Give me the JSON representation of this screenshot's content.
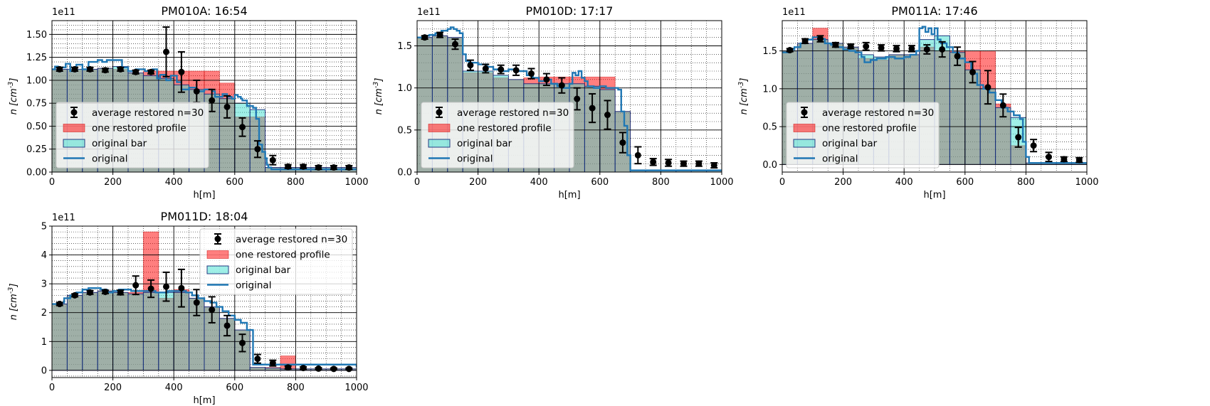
{
  "chart_data": [
    {
      "type": "bar",
      "title": "PM010A: 16:54",
      "xlabel": "h[m]",
      "ylabel": "n [cm^-3]",
      "y_offset_text": "1e11",
      "xlim": [
        0,
        1000
      ],
      "ylim": [
        0,
        1.65
      ],
      "xticks": [
        0,
        200,
        400,
        600,
        800,
        1000
      ],
      "yticks": [
        0.0,
        0.25,
        0.5,
        0.75,
        1.0,
        1.25,
        1.5
      ],
      "ytick_labels": [
        "0.00",
        "0.25",
        "0.50",
        "0.75",
        "1.00",
        "1.25",
        "1.50"
      ],
      "grid": true,
      "legend_position": "lower-left",
      "legend": [
        "average restored n=30",
        "one restored profile",
        "original bar",
        "original"
      ],
      "bin_width": 50,
      "original_bar": [
        1.12,
        1.12,
        1.12,
        1.13,
        1.15,
        1.08,
        1.05,
        1.02,
        0.95,
        0.9,
        0.85,
        0.8,
        0.75,
        0.68,
        0.05,
        0.05,
        0.05,
        0.05,
        0.05,
        0.05
      ],
      "restored_profile": [
        1.12,
        1.11,
        1.12,
        1.13,
        1.12,
        1.08,
        1.1,
        1.1,
        1.1,
        1.1,
        1.1,
        0.97,
        0.6,
        0.6,
        0.05,
        0.05,
        0.05,
        0.05,
        0.05,
        0.05
      ],
      "average_restored": {
        "x": [
          25,
          75,
          125,
          175,
          225,
          275,
          325,
          375,
          425,
          475,
          525,
          575,
          625,
          675,
          725,
          775,
          825,
          875,
          925,
          975
        ],
        "y": [
          1.12,
          1.12,
          1.12,
          1.11,
          1.12,
          1.09,
          1.09,
          1.31,
          1.09,
          0.88,
          0.78,
          0.71,
          0.49,
          0.25,
          0.13,
          0.06,
          0.06,
          0.05,
          0.05,
          0.05
        ],
        "err": [
          0.02,
          0.02,
          0.02,
          0.02,
          0.02,
          0.02,
          0.02,
          0.27,
          0.22,
          0.12,
          0.12,
          0.12,
          0.1,
          0.09,
          0.05,
          0.02,
          0.02,
          0.02,
          0.02,
          0.02
        ]
      },
      "original": {
        "x": [
          0,
          10,
          20,
          30,
          45,
          60,
          80,
          100,
          120,
          150,
          165,
          180,
          215,
          230,
          250,
          275,
          305,
          330,
          345,
          355,
          375,
          390,
          410,
          425,
          450,
          475,
          500,
          525,
          535,
          560,
          575,
          590,
          600,
          610,
          620,
          625,
          640,
          660,
          670,
          680,
          690,
          700,
          705,
          710,
          720,
          740,
          1000
        ],
        "y": [
          1.12,
          1.15,
          1.1,
          1.14,
          1.18,
          1.1,
          1.17,
          1.12,
          1.2,
          1.22,
          1.2,
          1.22,
          1.22,
          1.14,
          1.1,
          1.12,
          1.1,
          1.12,
          1.02,
          1.06,
          1.0,
          1.05,
          0.98,
          0.9,
          0.92,
          0.88,
          0.9,
          0.88,
          0.82,
          0.85,
          0.82,
          0.8,
          0.84,
          0.82,
          0.8,
          0.78,
          0.72,
          0.7,
          0.58,
          0.3,
          0.22,
          0.15,
          0.08,
          0.05,
          0.03,
          0.03,
          0.03
        ]
      }
    },
    {
      "type": "bar",
      "title": "PM010D: 17:17",
      "xlabel": "h[m]",
      "ylabel": "n [cm^-3]",
      "y_offset_text": "1e11",
      "xlim": [
        0,
        1000
      ],
      "ylim": [
        0,
        1.8
      ],
      "xticks": [
        0,
        200,
        400,
        600,
        800,
        1000
      ],
      "yticks": [
        0.0,
        0.5,
        1.0,
        1.5
      ],
      "ytick_labels": [
        "0.0",
        "0.5",
        "1.0",
        "1.5"
      ],
      "grid": true,
      "legend_position": "lower-left",
      "legend": [
        "average restored n=30",
        "one restored profile",
        "original bar",
        "original"
      ],
      "bin_width": 50,
      "original_bar": [
        1.6,
        1.62,
        1.6,
        1.2,
        1.2,
        1.15,
        1.1,
        1.05,
        1.05,
        1.05,
        1.05,
        1.02,
        0.98,
        0.72,
        0.02,
        0.02,
        0.02,
        0.02,
        0.02,
        0.02
      ],
      "restored_profile": [
        1.6,
        1.62,
        1.6,
        1.18,
        1.18,
        1.12,
        1.1,
        1.12,
        1.13,
        1.13,
        1.13,
        1.13,
        1.13,
        0.72,
        0.02,
        0.02,
        0.02,
        0.02,
        0.02,
        0.02
      ],
      "average_restored": {
        "x": [
          25,
          75,
          125,
          175,
          225,
          275,
          325,
          375,
          425,
          475,
          525,
          575,
          625,
          675,
          725,
          775,
          825,
          875,
          925,
          975
        ],
        "y": [
          1.6,
          1.63,
          1.52,
          1.27,
          1.23,
          1.22,
          1.21,
          1.17,
          1.1,
          1.03,
          0.87,
          0.76,
          0.68,
          0.35,
          0.2,
          0.12,
          0.11,
          0.1,
          0.1,
          0.08
        ],
        "err": [
          0.02,
          0.03,
          0.06,
          0.06,
          0.05,
          0.05,
          0.06,
          0.06,
          0.07,
          0.09,
          0.13,
          0.17,
          0.17,
          0.12,
          0.1,
          0.04,
          0.04,
          0.03,
          0.03,
          0.03
        ]
      },
      "original": {
        "x": [
          0,
          20,
          40,
          60,
          80,
          100,
          110,
          120,
          130,
          140,
          150,
          160,
          170,
          200,
          230,
          250,
          270,
          300,
          330,
          360,
          380,
          400,
          420,
          440,
          460,
          480,
          500,
          510,
          520,
          530,
          540,
          550,
          560,
          580,
          600,
          620,
          640,
          660,
          670,
          680,
          690,
          700,
          1000
        ],
        "y": [
          1.6,
          1.62,
          1.63,
          1.65,
          1.68,
          1.7,
          1.72,
          1.7,
          1.68,
          1.65,
          1.4,
          1.32,
          1.3,
          1.28,
          1.25,
          1.22,
          1.2,
          1.22,
          1.2,
          1.15,
          1.12,
          1.08,
          1.1,
          1.05,
          1.02,
          1.0,
          1.05,
          1.18,
          1.15,
          1.2,
          1.12,
          1.08,
          1.02,
          1.0,
          1.02,
          1.0,
          1.0,
          0.98,
          0.72,
          0.55,
          0.2,
          0.02,
          0.02
        ]
      }
    },
    {
      "type": "bar",
      "title": "PM011A: 17:46",
      "xlabel": "h[m]",
      "ylabel": "n [cm^-3]",
      "y_offset_text": "1e11",
      "xlim": [
        0,
        1000
      ],
      "ylim": [
        -0.1,
        1.9
      ],
      "xticks": [
        0,
        200,
        400,
        600,
        800,
        1000
      ],
      "yticks": [
        0.0,
        0.5,
        1.0,
        1.5
      ],
      "ytick_labels": [
        "0.0",
        "0.5",
        "1.0",
        "1.5"
      ],
      "grid": true,
      "legend_position": "lower-left",
      "legend": [
        "average restored n=30",
        "one restored profile",
        "original bar",
        "original"
      ],
      "bin_width": 50,
      "original_bar": [
        1.5,
        1.6,
        1.65,
        1.6,
        1.55,
        1.45,
        1.42,
        1.45,
        1.45,
        1.65,
        1.7,
        1.48,
        1.25,
        1.0,
        0.75,
        0.62,
        0.02,
        0.02,
        0.02,
        0.02
      ],
      "restored_profile": [
        1.5,
        1.6,
        1.8,
        1.6,
        1.55,
        1.4,
        1.38,
        1.45,
        1.45,
        1.55,
        1.5,
        1.5,
        1.5,
        1.5,
        0.8,
        0.25,
        0.02,
        0.02,
        0.02,
        0.02
      ],
      "average_restored": {
        "x": [
          25,
          75,
          125,
          175,
          225,
          275,
          325,
          375,
          425,
          475,
          525,
          575,
          625,
          675,
          725,
          775,
          825,
          875,
          925,
          975
        ],
        "y": [
          1.51,
          1.63,
          1.66,
          1.58,
          1.56,
          1.56,
          1.54,
          1.53,
          1.53,
          1.52,
          1.52,
          1.43,
          1.22,
          1.02,
          0.78,
          0.36,
          0.25,
          0.1,
          0.07,
          0.06
        ],
        "err": [
          0.02,
          0.03,
          0.04,
          0.03,
          0.03,
          0.05,
          0.04,
          0.04,
          0.04,
          0.06,
          0.1,
          0.12,
          0.14,
          0.22,
          0.15,
          0.13,
          0.08,
          0.06,
          0.03,
          0.03
        ]
      },
      "original": {
        "x": [
          0,
          20,
          40,
          60,
          80,
          100,
          120,
          140,
          160,
          180,
          200,
          220,
          240,
          260,
          270,
          290,
          310,
          340,
          370,
          400,
          420,
          440,
          450,
          460,
          470,
          480,
          490,
          500,
          510,
          520,
          540,
          560,
          580,
          600,
          620,
          640,
          660,
          680,
          700,
          720,
          740,
          760,
          780,
          790,
          800,
          810,
          1000
        ],
        "y": [
          1.48,
          1.52,
          1.55,
          1.6,
          1.65,
          1.68,
          1.66,
          1.6,
          1.58,
          1.55,
          1.52,
          1.5,
          1.48,
          1.42,
          1.35,
          1.38,
          1.4,
          1.42,
          1.4,
          1.42,
          1.45,
          1.5,
          1.8,
          1.82,
          1.75,
          1.8,
          1.72,
          1.8,
          1.65,
          1.6,
          1.55,
          1.48,
          1.4,
          1.35,
          1.2,
          1.05,
          1.0,
          0.95,
          0.85,
          0.75,
          0.7,
          0.65,
          0.6,
          0.3,
          0.1,
          0.02,
          0.02
        ]
      }
    },
    {
      "type": "bar",
      "title": "PM011D: 18:04",
      "xlabel": "h[m]",
      "ylabel": "n [cm^-3]",
      "y_offset_text": "1e11",
      "xlim": [
        0,
        1000
      ],
      "ylim": [
        -0.25,
        5.0
      ],
      "xticks": [
        0,
        200,
        400,
        600,
        800,
        1000
      ],
      "yticks": [
        0,
        1,
        2,
        3,
        4,
        5
      ],
      "ytick_labels": [
        "0",
        "1",
        "2",
        "3",
        "4",
        "5"
      ],
      "grid": true,
      "legend_position": "upper-right",
      "legend": [
        "average restored n=30",
        "one restored profile",
        "original bar",
        "original"
      ],
      "bin_width": 50,
      "original_bar": [
        2.3,
        2.6,
        2.7,
        2.75,
        2.7,
        2.65,
        2.7,
        2.7,
        2.7,
        2.5,
        2.2,
        1.8,
        1.4,
        0.1,
        0.08,
        0.05,
        0.05,
        0.05,
        0.05,
        0.05
      ],
      "restored_profile": [
        2.3,
        2.6,
        2.7,
        2.75,
        2.7,
        2.7,
        4.8,
        2.5,
        2.8,
        2.5,
        2.2,
        1.8,
        1.4,
        0.1,
        0.1,
        0.5,
        0.05,
        0.05,
        0.05,
        0.05
      ],
      "average_restored": {
        "x": [
          25,
          75,
          125,
          175,
          225,
          275,
          325,
          375,
          425,
          475,
          525,
          575,
          625,
          675,
          725,
          775,
          825,
          875,
          925,
          975
        ],
        "y": [
          2.3,
          2.6,
          2.7,
          2.72,
          2.7,
          2.95,
          2.83,
          2.9,
          2.85,
          2.35,
          2.1,
          1.55,
          0.95,
          0.4,
          0.25,
          0.1,
          0.08,
          0.06,
          0.05,
          0.05
        ],
        "err": [
          0.05,
          0.05,
          0.06,
          0.06,
          0.08,
          0.32,
          0.3,
          0.5,
          0.65,
          0.45,
          0.45,
          0.35,
          0.3,
          0.15,
          0.1,
          0.05,
          0.04,
          0.03,
          0.03,
          0.03
        ]
      },
      "original": {
        "x": [
          0,
          20,
          40,
          60,
          80,
          100,
          120,
          140,
          160,
          180,
          200,
          220,
          240,
          260,
          300,
          340,
          380,
          420,
          440,
          460,
          480,
          500,
          520,
          540,
          560,
          580,
          600,
          620,
          640,
          660,
          1000
        ],
        "y": [
          2.3,
          2.35,
          2.5,
          2.6,
          2.7,
          2.8,
          2.85,
          2.85,
          2.8,
          2.7,
          2.75,
          2.8,
          2.8,
          2.75,
          2.75,
          2.7,
          2.75,
          2.75,
          2.7,
          2.6,
          2.5,
          2.4,
          2.35,
          2.2,
          2.05,
          1.9,
          1.75,
          1.65,
          1.4,
          0.2,
          0.1
        ]
      }
    }
  ]
}
